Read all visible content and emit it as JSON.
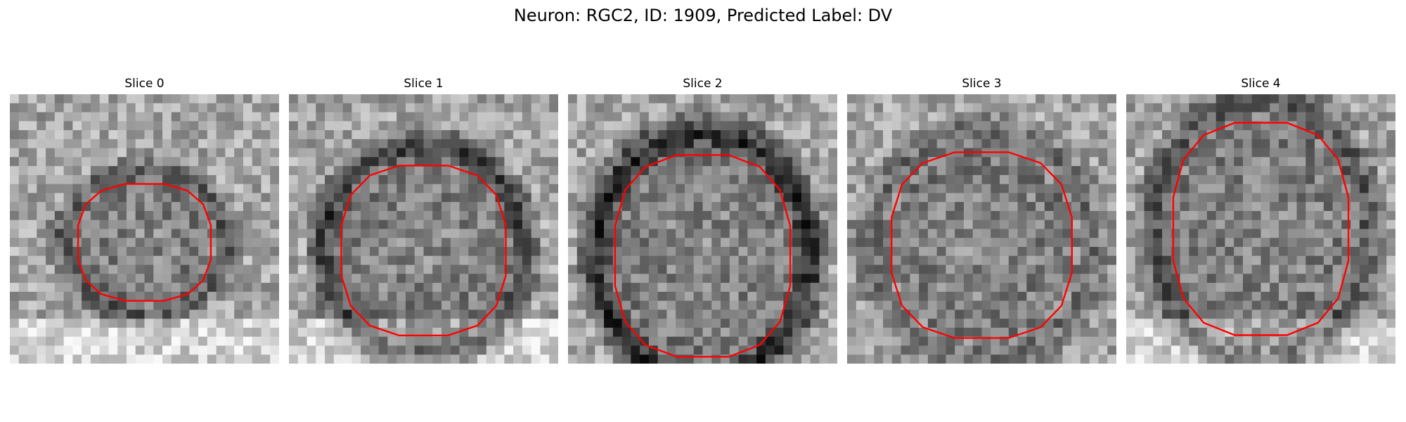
{
  "figure": {
    "title": "Neuron: RGC2, ID: 1909, Predicted Label: DV"
  },
  "colors": {
    "contour": "#ff0000",
    "background": "#ffffff",
    "colormap": "gray"
  },
  "slices": [
    {
      "title": "Slice 0",
      "contour_center": [
        0.5,
        0.55
      ],
      "contour_radius": [
        0.25,
        0.22
      ],
      "ring_darkness": "medium",
      "bright_bottom": true
    },
    {
      "title": "Slice 1",
      "contour_center": [
        0.5,
        0.58
      ],
      "contour_radius": [
        0.31,
        0.32
      ],
      "ring_darkness": "dark",
      "bright_bottom": true
    },
    {
      "title": "Slice 2",
      "contour_center": [
        0.5,
        0.6
      ],
      "contour_radius": [
        0.33,
        0.38
      ],
      "ring_darkness": "very-dark",
      "bright_bottom": false
    },
    {
      "title": "Slice 3",
      "contour_center": [
        0.5,
        0.56
      ],
      "contour_radius": [
        0.34,
        0.35
      ],
      "ring_darkness": "light",
      "bright_bottom": false
    },
    {
      "title": "Slice 4",
      "contour_center": [
        0.5,
        0.5
      ],
      "contour_radius": [
        0.33,
        0.4
      ],
      "ring_darkness": "medium",
      "bright_bottom": true
    }
  ]
}
